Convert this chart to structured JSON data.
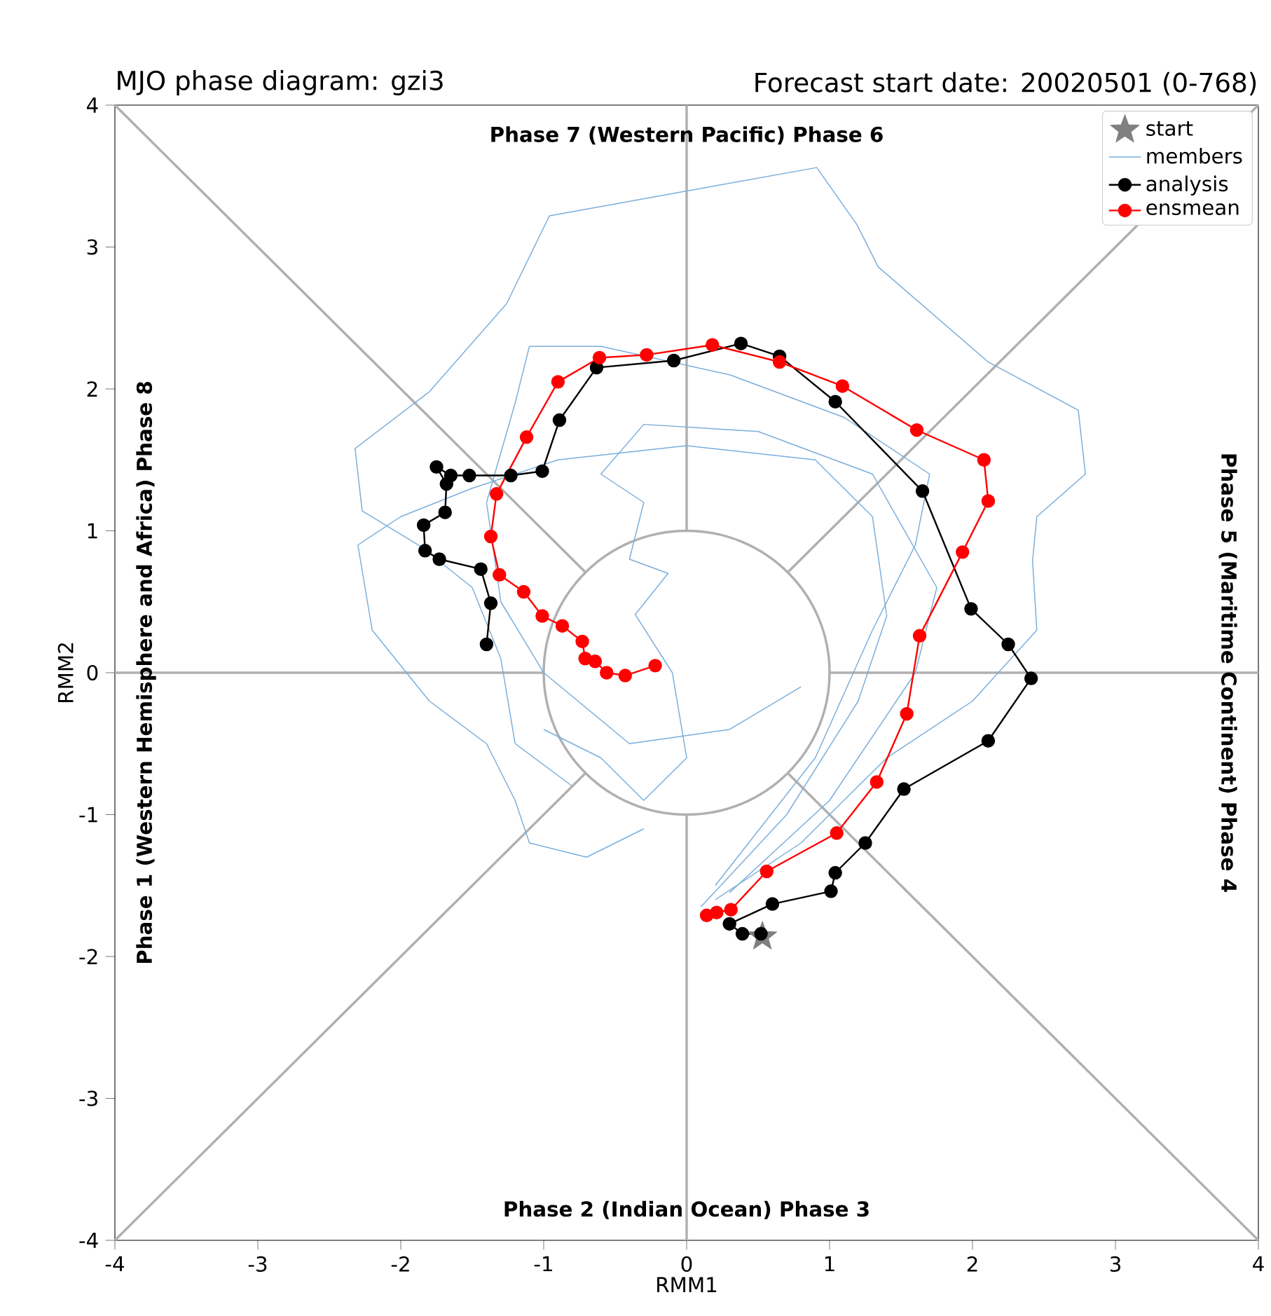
{
  "chart_data": {
    "type": "line",
    "title": "MJO phase diagram: gzi3",
    "subtitle": "Forecast start date: 20020501 (0-768)",
    "xlabel": "RMM1",
    "ylabel": "RMM2",
    "annotations": [
      "Phase 7 (Western Pacific) Phase 6",
      "Phase 2 (Indian Ocean) Phase 3",
      "Phase 1 (Western Hemisphere and Africa) Phase 8",
      "Phase 5 (Maritime Continent) Phase 4"
    ],
    "xlim": [
      -4,
      4
    ],
    "ylim": [
      -4,
      4
    ],
    "xticks": [
      -4,
      -3,
      -2,
      -1,
      0,
      1,
      2,
      3,
      4
    ],
    "yticks": [
      -4,
      -3,
      -2,
      -1,
      0,
      1,
      2,
      3,
      4
    ],
    "legend": "top right",
    "series": [
      {
        "color": "#b0b0b0",
        "marker": "none",
        "x": [
          -4,
          -1
        ],
        "values": [
          0,
          0
        ]
      },
      {
        "color": "#b0b0b0",
        "marker": "none",
        "x": [
          1,
          4
        ],
        "values": [
          0,
          0
        ]
      },
      {
        "color": "#b0b0b0",
        "marker": "none",
        "x": [
          0,
          0
        ],
        "values": [
          -4,
          -1
        ]
      },
      {
        "color": "#b0b0b0",
        "marker": "none",
        "x": [
          0,
          0
        ],
        "values": [
          1,
          4
        ]
      },
      {
        "color": "#b0b0b0",
        "marker": "none",
        "x": [
          -4,
          -0.71
        ],
        "values": [
          4,
          0.71
        ]
      },
      {
        "color": "#b0b0b0",
        "marker": "none",
        "x": [
          0.71,
          4
        ],
        "values": [
          0.71,
          4
        ]
      },
      {
        "color": "#b0b0b0",
        "marker": "none",
        "x": [
          -4,
          -0.71
        ],
        "values": [
          -4,
          -0.71
        ]
      },
      {
        "color": "#b0b0b0",
        "marker": "none",
        "x": [
          0.71,
          4
        ],
        "values": [
          -0.71,
          -4
        ]
      },
      {
        "type": "line",
        "color": "#7aaedb",
        "marker": "none",
        "x": [
          0.1,
          0.7,
          1.2,
          1.4,
          1.3,
          0.9,
          0.0,
          -0.9,
          -1.5,
          -2.0,
          -2.3,
          -2.2,
          -1.8,
          -1.4,
          -1.2,
          -1.1,
          -0.7,
          -0.3
        ],
        "values": [
          -1.65,
          -1.0,
          -0.2,
          0.4,
          1.1,
          1.5,
          1.6,
          1.5,
          1.3,
          1.1,
          0.9,
          0.3,
          -0.2,
          -0.5,
          -0.9,
          -1.2,
          -1.3,
          -1.1
        ]
      },
      {
        "type": "line",
        "color": "#7aaedb",
        "marker": "none",
        "x": [
          0.3,
          1.0,
          1.6,
          1.75,
          1.3,
          0.5,
          -0.3,
          -0.6,
          -0.3,
          -0.4,
          -0.13,
          -0.36,
          -0.1,
          0.0,
          -0.3,
          -0.6,
          -1.0
        ],
        "values": [
          -1.55,
          -0.9,
          0.0,
          0.6,
          1.4,
          1.7,
          1.75,
          1.4,
          1.2,
          0.8,
          0.7,
          0.41,
          0.0,
          -0.6,
          -0.9,
          -0.6,
          -0.4
        ]
      },
      {
        "type": "line",
        "color": "#7aaedb",
        "marker": "none",
        "x": [
          0.2,
          0.9,
          1.3,
          1.6,
          1.7,
          1.1,
          0.3,
          -0.6,
          -1.1,
          -1.2,
          -1.4,
          -1.3,
          -1.0,
          -0.4,
          0.3,
          0.8
        ],
        "values": [
          -1.5,
          -0.6,
          0.3,
          0.9,
          1.4,
          1.8,
          2.1,
          2.3,
          2.3,
          1.9,
          1.2,
          0.5,
          0.0,
          -0.5,
          -0.4,
          -0.1
        ]
      },
      {
        "type": "line",
        "color": "#7aaedb",
        "marker": "none",
        "name": "members",
        "x": [
          0.2,
          0.8,
          1.4,
          2.0,
          2.45,
          2.42,
          2.45,
          2.79,
          2.74,
          2.11,
          1.34,
          1.19,
          0.91,
          -0.96,
          -1.26,
          -1.8,
          -2.32,
          -2.27,
          -1.86,
          -1.5,
          -1.3,
          -1.2,
          -0.8
        ],
        "values": [
          -1.6,
          -1.2,
          -0.6,
          -0.2,
          0.3,
          0.79,
          1.1,
          1.4,
          1.85,
          2.19,
          2.86,
          3.16,
          3.56,
          3.22,
          2.6,
          1.98,
          1.58,
          1.14,
          0.89,
          0.6,
          0.1,
          -0.5,
          -0.8
        ]
      },
      {
        "type": "scatter",
        "color": "#808080",
        "marker": "star",
        "name": "start",
        "x": [
          0.53
        ],
        "values": [
          -1.86
        ]
      },
      {
        "type": "line",
        "color": "#000000",
        "marker": "circle",
        "name": "analysis",
        "x": [
          0.52,
          0.39,
          0.3,
          0.6,
          1.01,
          1.04,
          1.25,
          1.52,
          2.11,
          2.41,
          2.25,
          1.99,
          1.65,
          1.04,
          0.65,
          0.38,
          -0.09,
          -0.63,
          -0.89,
          -1.01,
          -1.23,
          -1.52,
          -1.65,
          -1.75,
          -1.68,
          -1.69,
          -1.84,
          -1.83,
          -1.73,
          -1.44,
          -1.37,
          -1.4
        ],
        "values": [
          -1.84,
          -1.84,
          -1.77,
          -1.63,
          -1.54,
          -1.41,
          -1.2,
          -0.82,
          -0.48,
          -0.04,
          0.2,
          0.45,
          1.28,
          1.91,
          2.23,
          2.32,
          2.2,
          2.15,
          1.78,
          1.42,
          1.39,
          1.39,
          1.39,
          1.45,
          1.33,
          1.13,
          1.04,
          0.86,
          0.8,
          0.73,
          0.49,
          0.2
        ]
      },
      {
        "type": "line",
        "color": "#ff0000",
        "marker": "circle",
        "name": "ensmean",
        "x": [
          0.14,
          0.21,
          0.31,
          0.56,
          1.05,
          1.33,
          1.54,
          1.63,
          1.93,
          2.11,
          2.08,
          1.61,
          1.09,
          0.65,
          0.18,
          -0.28,
          -0.61,
          -0.9,
          -1.12,
          -1.33,
          -1.37,
          -1.31,
          -1.14,
          -1.01,
          -0.87,
          -0.73,
          -0.71,
          -0.64,
          -0.56,
          -0.43,
          -0.22
        ],
        "values": [
          -1.71,
          -1.69,
          -1.67,
          -1.4,
          -1.13,
          -0.77,
          -0.29,
          0.26,
          0.85,
          1.21,
          1.5,
          1.71,
          2.02,
          2.19,
          2.31,
          2.24,
          2.22,
          2.05,
          1.66,
          1.26,
          0.96,
          0.69,
          0.57,
          0.4,
          0.33,
          0.22,
          0.1,
          0.08,
          0.0,
          -0.02,
          0.05
        ]
      }
    ]
  }
}
